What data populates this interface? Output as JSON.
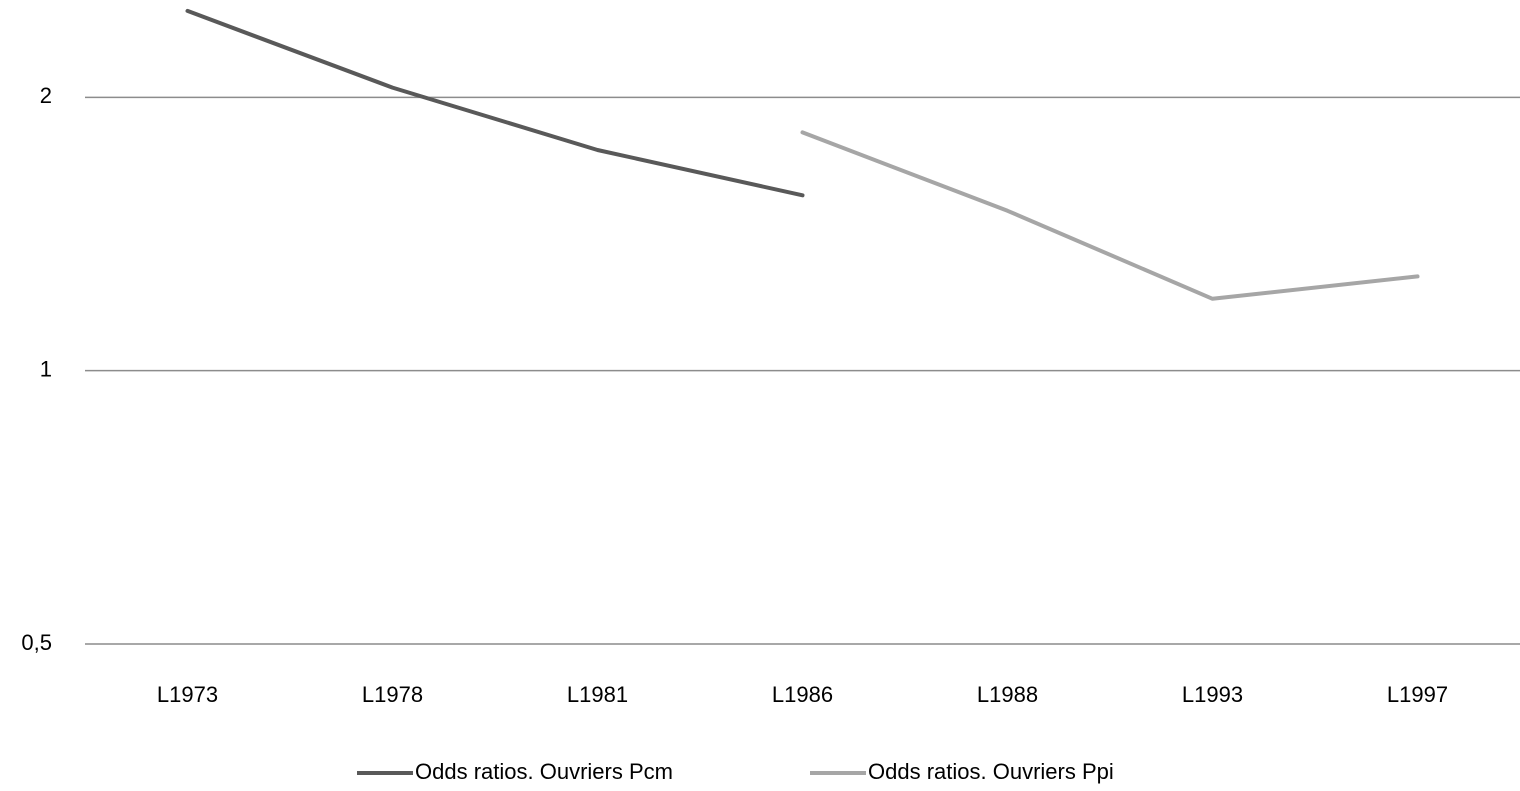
{
  "chart_data": {
    "type": "line",
    "categories": [
      "L1973",
      "L1978",
      "L1981",
      "L1986",
      "L1988",
      "L1993",
      "L1997"
    ],
    "series": [
      {
        "name": "Odds ratios. Ouvriers Pcm",
        "color": "#595959",
        "values": [
          2.49,
          2.05,
          1.75,
          1.56,
          null,
          null,
          null
        ]
      },
      {
        "name": "Odds ratios. Ouvriers Ppi",
        "color": "#a6a6a6",
        "values": [
          null,
          null,
          null,
          1.83,
          1.5,
          1.2,
          1.27
        ]
      }
    ],
    "ylim": [
      0.5,
      2.56
    ],
    "log_scale": true,
    "yticks": [
      {
        "value": 0.5,
        "label": "0,5"
      },
      1,
      2
    ],
    "grid": true,
    "legend": "bottom"
  }
}
